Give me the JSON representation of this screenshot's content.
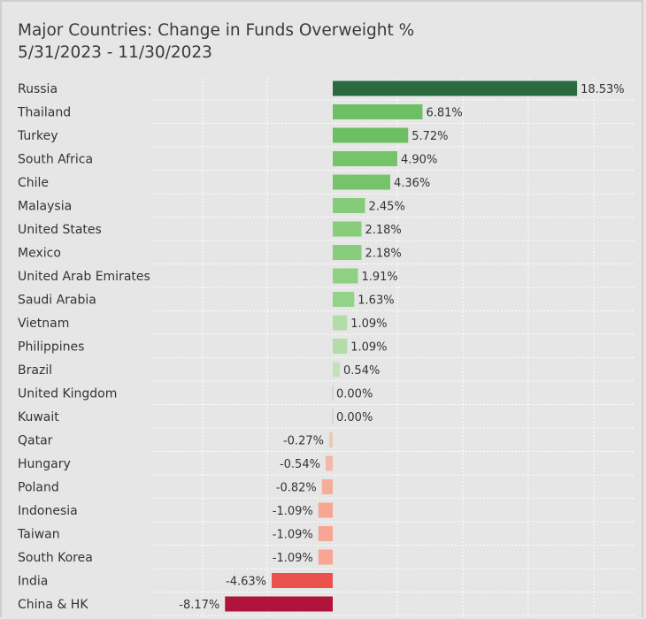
{
  "chart_data": {
    "type": "bar",
    "orientation": "horizontal",
    "title": "Major Countries:  Change in Funds Overweight %",
    "subtitle": "5/31/2023 - 11/30/2023",
    "value_suffix": "%",
    "categories": [
      "Russia",
      "Thailand",
      "Turkey",
      "South Africa",
      "Chile",
      "Malaysia",
      "United States",
      "Mexico",
      "United Arab Emirates",
      "Saudi Arabia",
      "Vietnam",
      "Philippines",
      "Brazil",
      "United Kingdom",
      "Kuwait",
      "Qatar",
      "Hungary",
      "Poland",
      "Indonesia",
      "Taiwan",
      "South Korea",
      "India",
      "China & HK"
    ],
    "values": [
      18.53,
      6.81,
      5.72,
      4.9,
      4.36,
      2.45,
      2.18,
      2.18,
      1.91,
      1.63,
      1.09,
      1.09,
      0.54,
      0.0,
      0.0,
      -0.27,
      -0.54,
      -0.82,
      -1.09,
      -1.09,
      -1.09,
      -4.63,
      -8.17
    ],
    "labels": [
      "18.53%",
      "6.81%",
      "5.72%",
      "4.90%",
      "4.36%",
      "2.45%",
      "2.18%",
      "2.18%",
      "1.91%",
      "1.63%",
      "1.09%",
      "1.09%",
      "0.54%",
      "0.00%",
      "0.00%",
      "-0.27%",
      "-0.54%",
      "-0.82%",
      "-1.09%",
      "-1.09%",
      "-1.09%",
      "-4.63%",
      "-8.17%"
    ],
    "bar_colors": [
      "#2a6a3e",
      "#6dbf63",
      "#6dbf63",
      "#76c46a",
      "#76c46a",
      "#85cc79",
      "#88cd7c",
      "#88cd7c",
      "#8fd083",
      "#94d289",
      "#b3dca8",
      "#b3dca8",
      "#c4e0b8",
      "#d6d6d6",
      "#d6d6d6",
      "#e8c9b9",
      "#f2b9a9",
      "#f5ac99",
      "#f7a693",
      "#f7a693",
      "#f7a693",
      "#e8524a",
      "#b0143a"
    ],
    "grid": true,
    "grid_style": "dotted-white"
  }
}
